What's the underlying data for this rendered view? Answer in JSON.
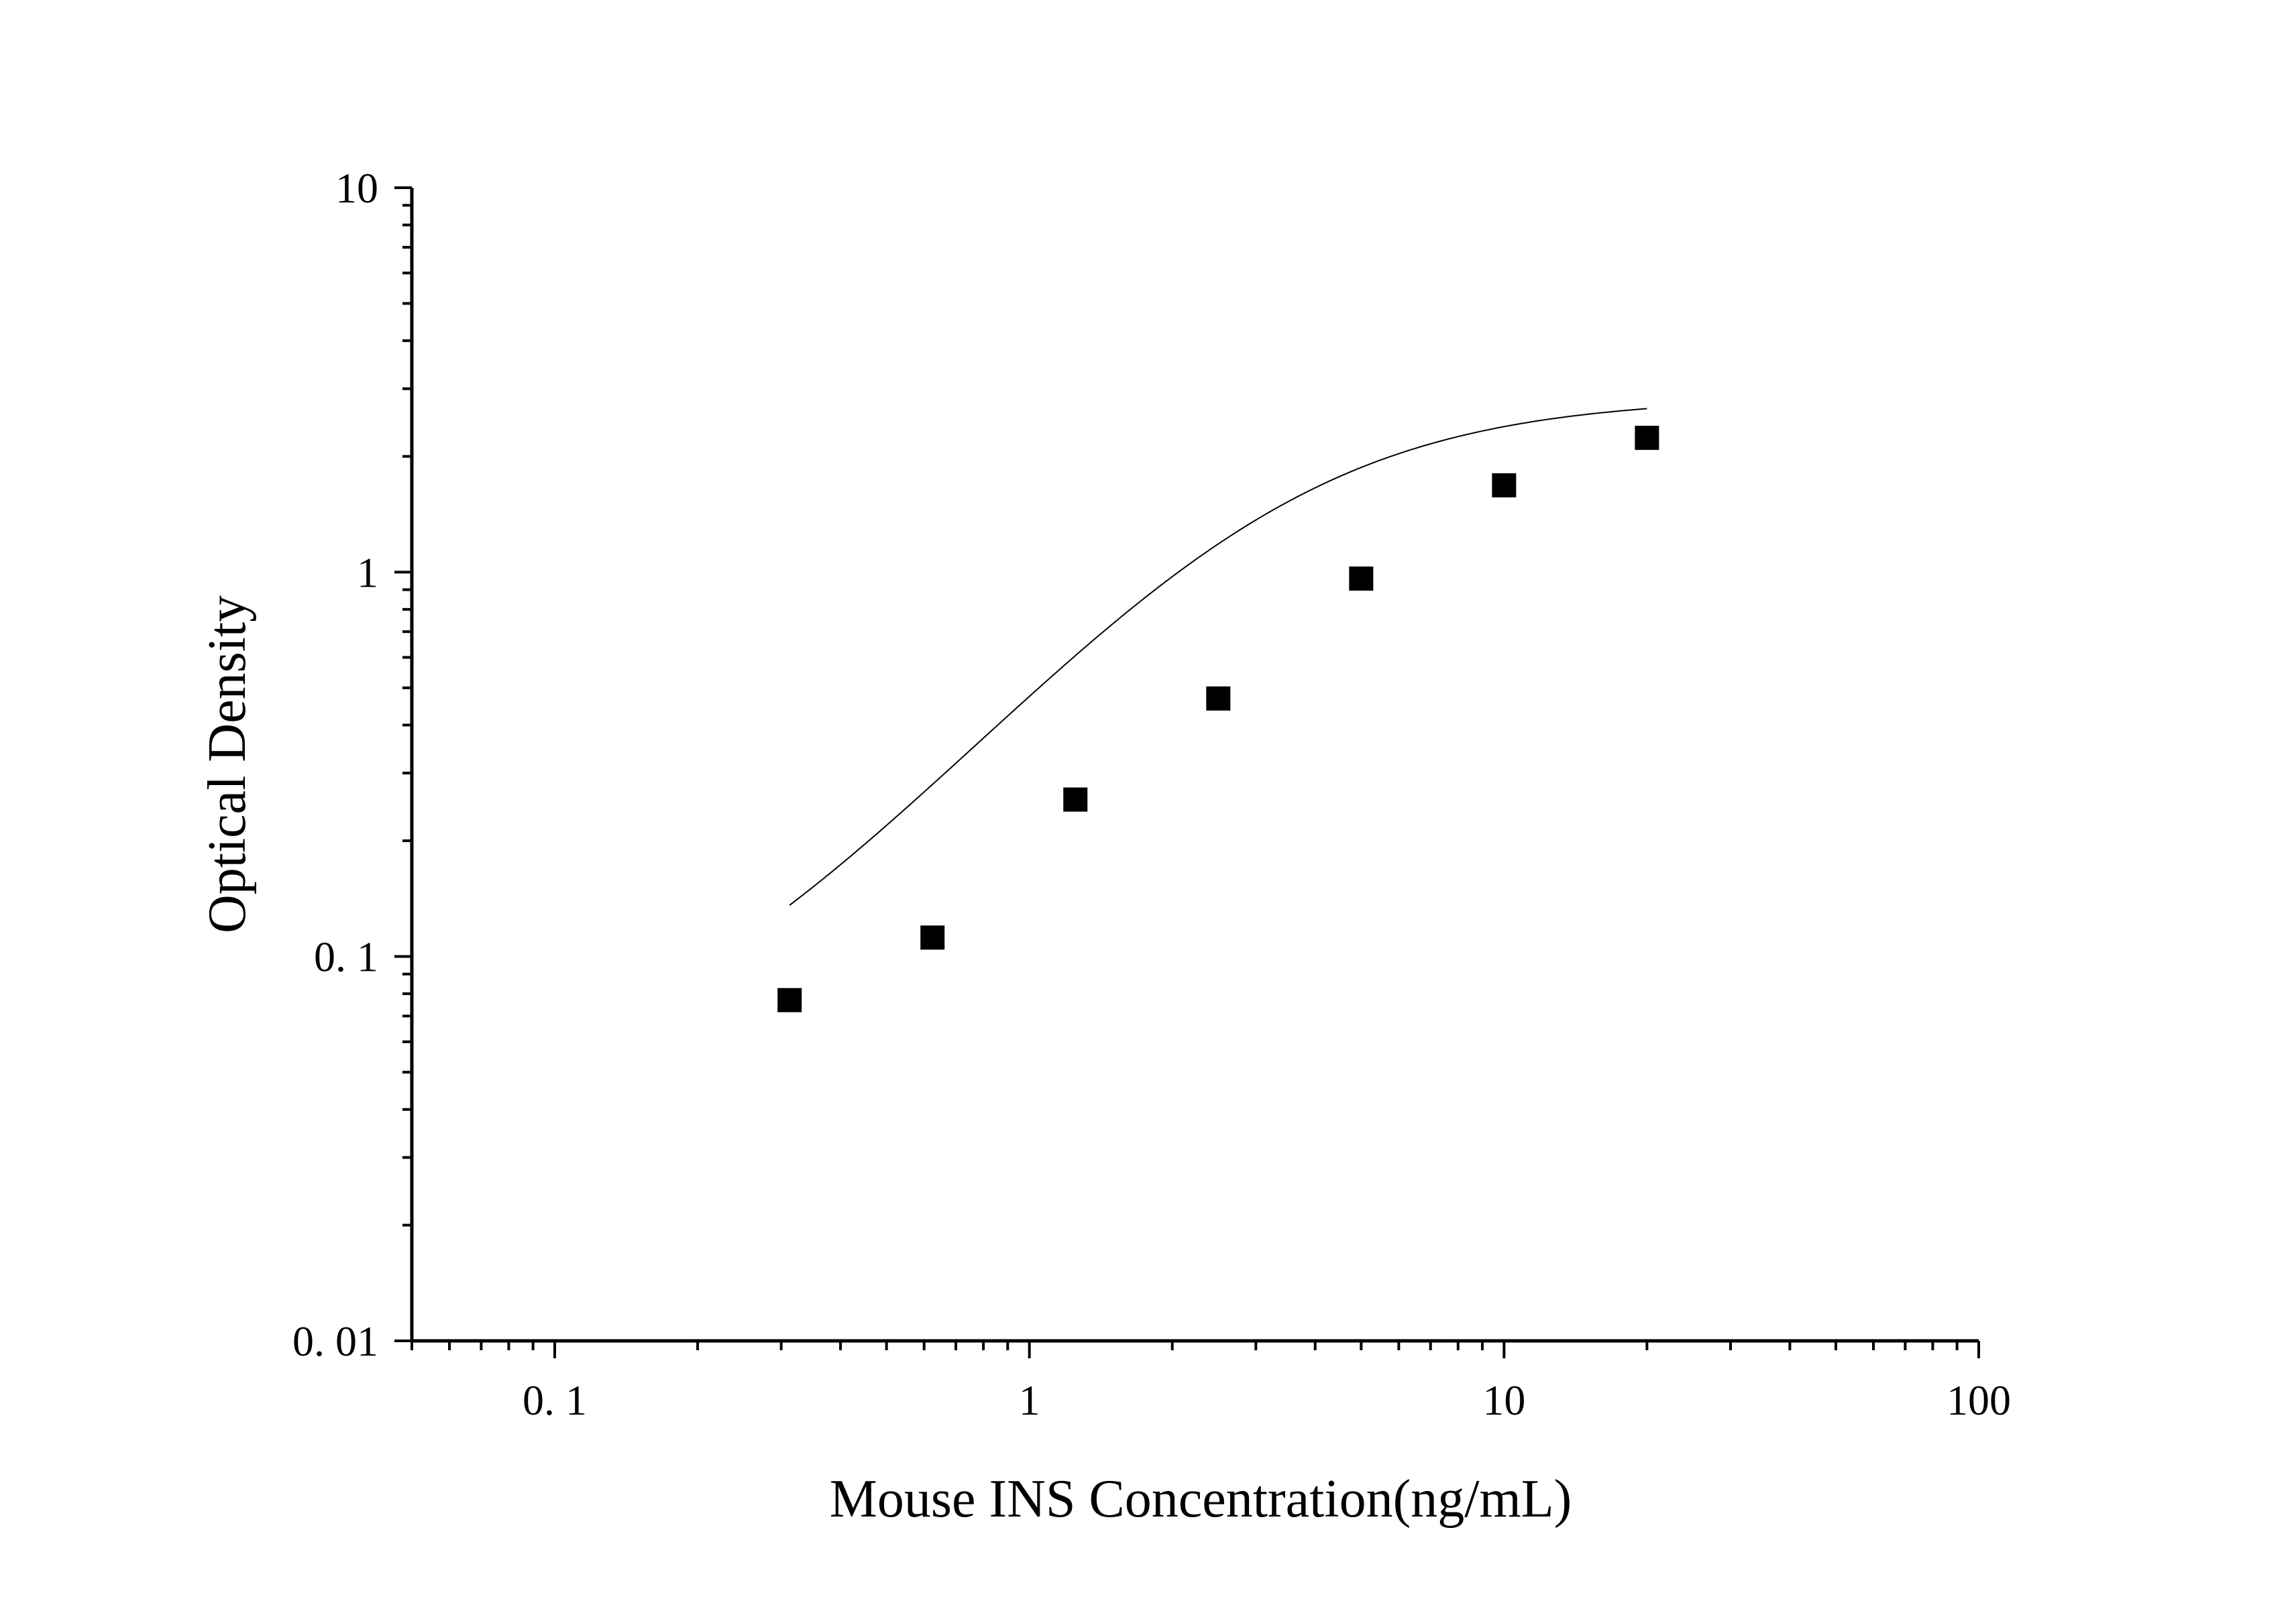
{
  "chart_data": {
    "type": "scatter",
    "title": "",
    "xlabel": "Mouse INS Concentration(ng/mL)",
    "ylabel": "Optical Density",
    "x_scale": "log",
    "y_scale": "log",
    "xlim": [
      0.05,
      100
    ],
    "ylim": [
      0.01,
      10
    ],
    "x_ticks": [
      {
        "value": 0.1,
        "label": "0. 1"
      },
      {
        "value": 1,
        "label": "1"
      },
      {
        "value": 10,
        "label": "10"
      },
      {
        "value": 100,
        "label": "100"
      }
    ],
    "y_ticks": [
      {
        "value": 0.01,
        "label": "0. 01"
      },
      {
        "value": 0.1,
        "label": "0. 1"
      },
      {
        "value": 1,
        "label": "1"
      },
      {
        "value": 10,
        "label": "10"
      }
    ],
    "grid": false,
    "legend": "none",
    "series": [
      {
        "marker": "square",
        "color": "#000000",
        "points": [
          {
            "x": 0.3125,
            "y": 0.077
          },
          {
            "x": 0.625,
            "y": 0.112
          },
          {
            "x": 1.25,
            "y": 0.256
          },
          {
            "x": 2.5,
            "y": 0.469
          },
          {
            "x": 5,
            "y": 0.962
          },
          {
            "x": 10,
            "y": 1.682
          },
          {
            "x": 20,
            "y": 2.235
          }
        ]
      }
    ],
    "fit_curve": {
      "type": "4PL",
      "color": "#000000",
      "x_range": [
        0.3125,
        20
      ],
      "bottom": 0.045,
      "top": 2.85,
      "ec50": 3.25,
      "hill": 1.45
    }
  }
}
